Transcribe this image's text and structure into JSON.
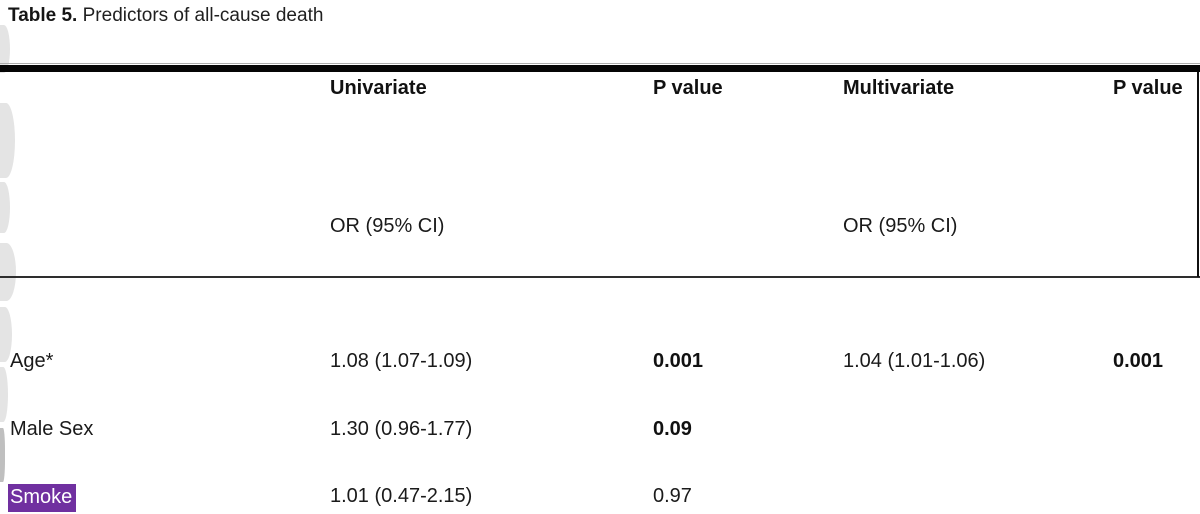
{
  "title": {
    "prefix": "Table 5.",
    "text": " Predictors of all-cause death"
  },
  "table": {
    "highlight_color": "#7030A0",
    "columns": {
      "c1": "Univariate",
      "c2": "P value",
      "c3": "Multivariate",
      "c4": "P value"
    },
    "subheader": {
      "univariate_unit": "OR (95% CI)",
      "multivariate_unit": "OR (95% CI)"
    },
    "rows": [
      {
        "label": "Age*",
        "univariate_or": "1.08 (1.07-1.09)",
        "p_univariate": "0.001",
        "multivariate_or": "1.04 (1.01-1.06)",
        "p_multivariate": "0.001"
      },
      {
        "label": "Male Sex",
        "univariate_or": "1.30 (0.96-1.77)",
        "p_univariate": "0.09",
        "multivariate_or": "",
        "p_multivariate": ""
      },
      {
        "label": "Smoke",
        "univariate_or": "1.01 (0.47-2.15)",
        "p_univariate": "0.97",
        "multivariate_or": "",
        "p_multivariate": ""
      }
    ]
  }
}
